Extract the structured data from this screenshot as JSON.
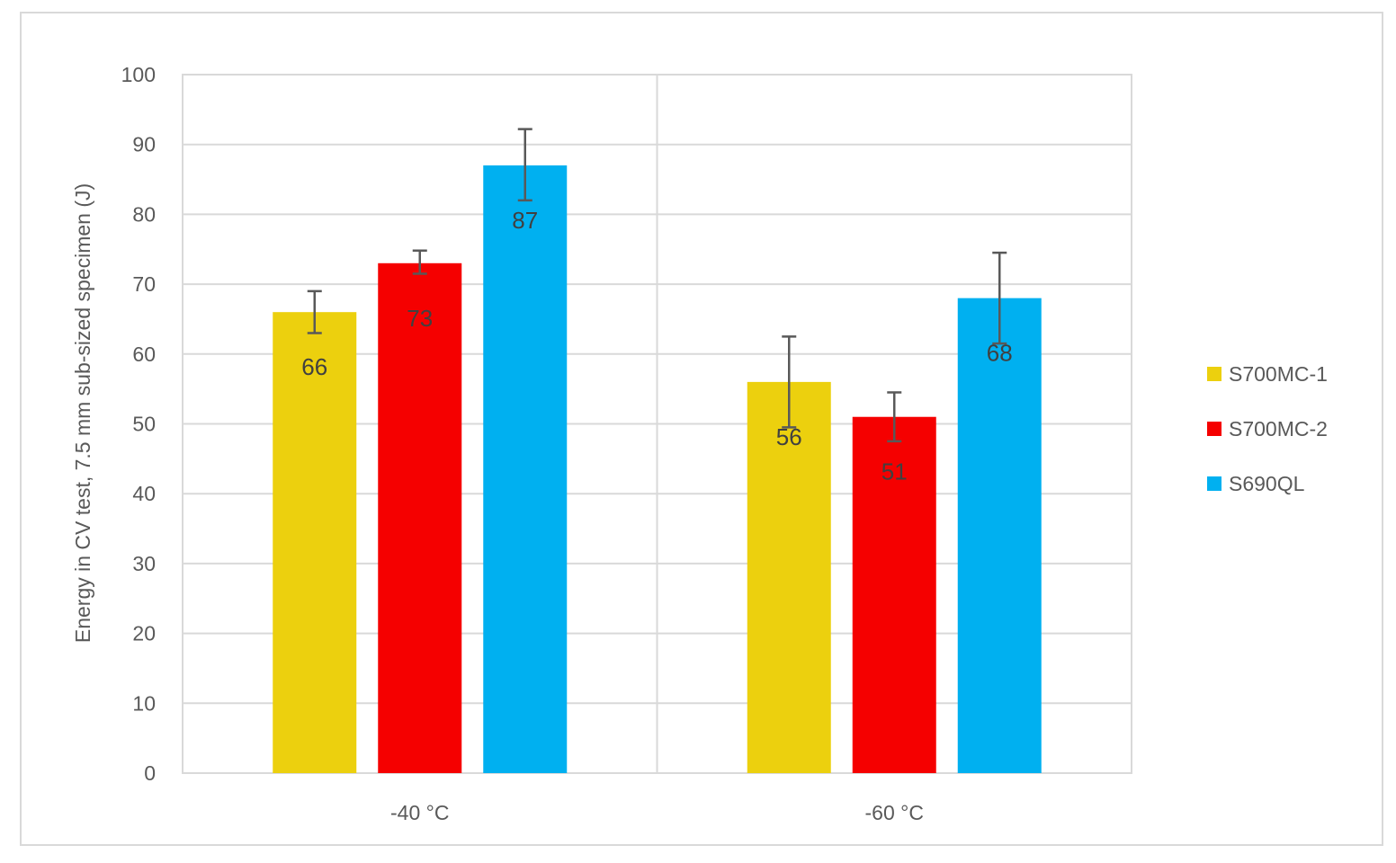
{
  "chart_data": {
    "type": "bar",
    "categories": [
      "-40 °C",
      "-60 °C"
    ],
    "series": [
      {
        "name": "S700MC-1",
        "color": "#ecd00e",
        "values": [
          66,
          56
        ],
        "error_low": [
          63,
          49.5
        ],
        "error_high": [
          69,
          62.5
        ]
      },
      {
        "name": "S700MC-2",
        "color": "#f50000",
        "values": [
          73,
          51
        ],
        "error_low": [
          71.5,
          47.5
        ],
        "error_high": [
          74.8,
          54.5
        ]
      },
      {
        "name": "S690QL",
        "color": "#00b0f0",
        "values": [
          87,
          68
        ],
        "error_low": [
          82,
          61.5
        ],
        "error_high": [
          92.2,
          74.5
        ]
      }
    ],
    "ylabel": "Energy in CV test, 7.5 mm sub-sized specimen (J)",
    "xlabel": "",
    "title": "",
    "ylim": [
      0,
      100
    ],
    "yticks": [
      0,
      10,
      20,
      30,
      40,
      50,
      60,
      70,
      80,
      90,
      100
    ],
    "grid": true,
    "legend": "right"
  }
}
